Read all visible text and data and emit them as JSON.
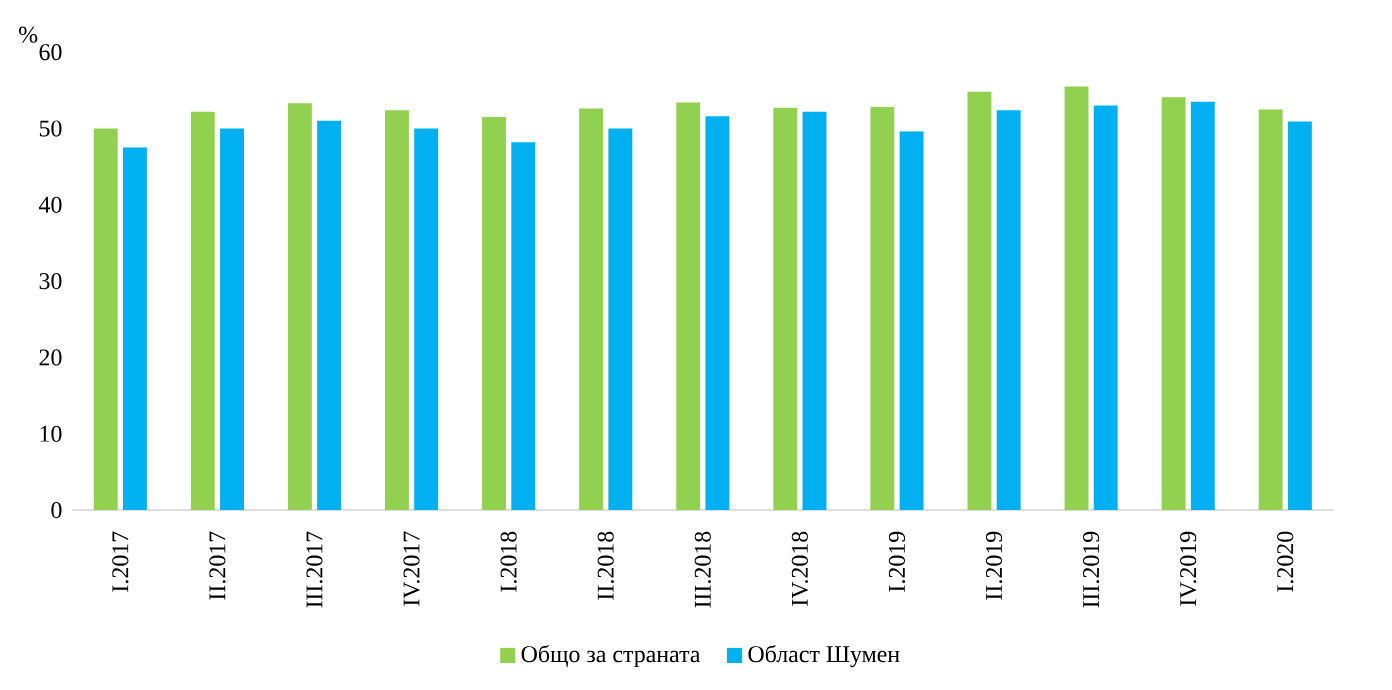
{
  "chart_data": {
    "type": "bar",
    "ylabel": "%",
    "categories": [
      "I.2017",
      "II.2017",
      "III.2017",
      "IV.2017",
      "I.2018",
      "II.2018",
      "III.2018",
      "IV.2018",
      "I.2019",
      "II.2019",
      "III.2019",
      "IV.2019",
      "I.2020"
    ],
    "series": [
      {
        "name": "Общо за страната",
        "color": "#92d050",
        "values": [
          50.0,
          52.2,
          53.3,
          52.4,
          51.5,
          52.6,
          53.4,
          52.7,
          52.8,
          54.8,
          55.5,
          54.1,
          52.5
        ]
      },
      {
        "name": "Област Шумен",
        "color": "#00b0f0",
        "values": [
          47.5,
          50.0,
          51.0,
          50.0,
          48.2,
          50.0,
          51.6,
          52.2,
          49.6,
          52.4,
          53.0,
          53.5,
          50.9
        ]
      }
    ],
    "ylim": [
      0,
      60
    ],
    "yticks": [
      0,
      10,
      20,
      30,
      40,
      50,
      60
    ],
    "legend": "bottom"
  }
}
